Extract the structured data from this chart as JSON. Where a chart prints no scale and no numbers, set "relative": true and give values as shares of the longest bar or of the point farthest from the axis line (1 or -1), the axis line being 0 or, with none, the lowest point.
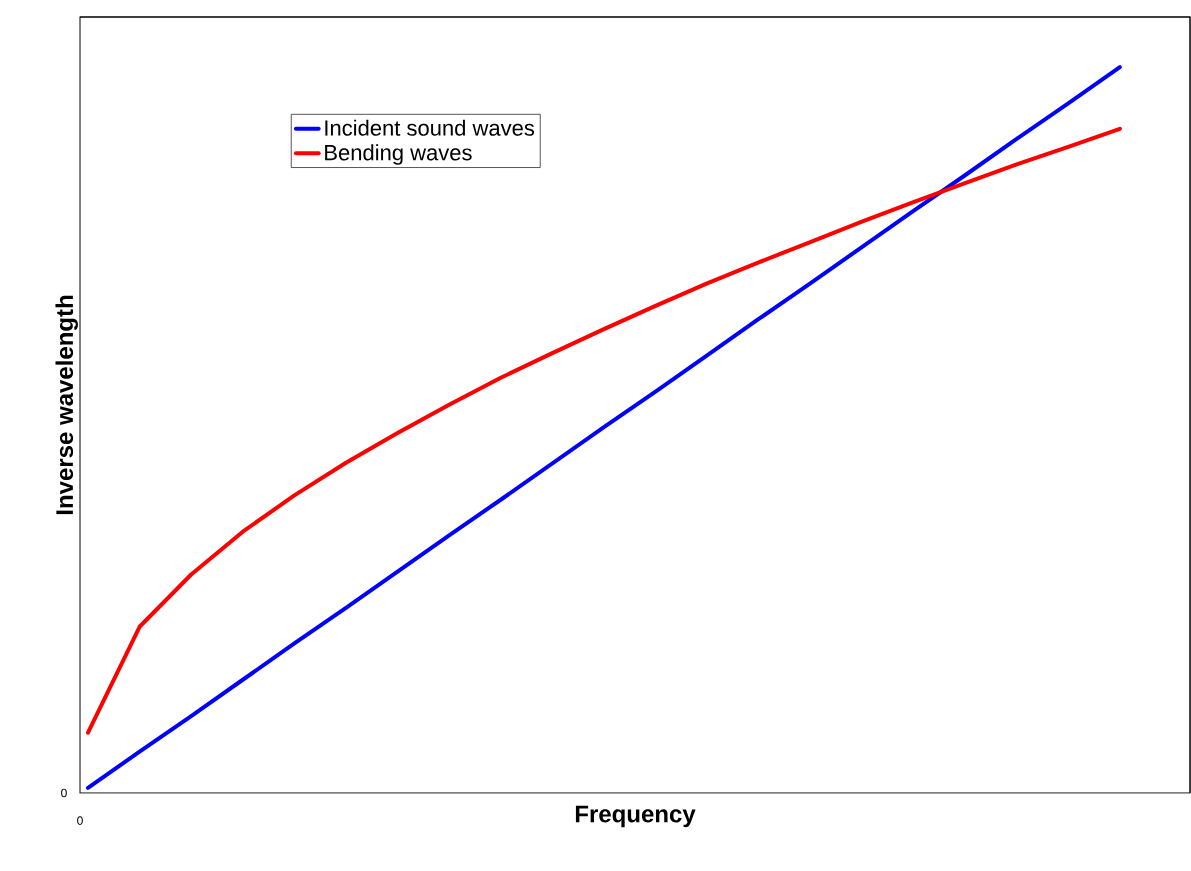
{
  "chart_data": {
    "type": "line",
    "relative": true,
    "xlabel": "Frequency",
    "ylabel": "Inverse wavelength",
    "categories": [
      null,
      null,
      null,
      null,
      null,
      null,
      null,
      null,
      null,
      null,
      null,
      null,
      null,
      null,
      null,
      null,
      null,
      null,
      null,
      null,
      null
    ],
    "series": [
      {
        "name": "Incident sound waves",
        "color": "#0000ff",
        "values": [
          0.007,
          0.057,
          0.106,
          0.156,
          0.206,
          0.255,
          0.305,
          0.355,
          0.404,
          0.454,
          0.504,
          0.553,
          0.603,
          0.653,
          0.702,
          0.752,
          0.802,
          0.851,
          0.901,
          0.95,
          1.0
        ]
      },
      {
        "name": "Bending waves",
        "color": "#ff0000",
        "values": [
          0.083,
          0.229,
          0.301,
          0.36,
          0.41,
          0.455,
          0.496,
          0.535,
          0.572,
          0.606,
          0.639,
          0.671,
          0.702,
          0.731,
          0.759,
          0.787,
          0.814,
          0.84,
          0.866,
          0.89,
          0.915
        ]
      }
    ],
    "annotations": [
      "0",
      "0"
    ],
    "legend": "top left",
    "marker": "none",
    "line_style": "solid"
  }
}
